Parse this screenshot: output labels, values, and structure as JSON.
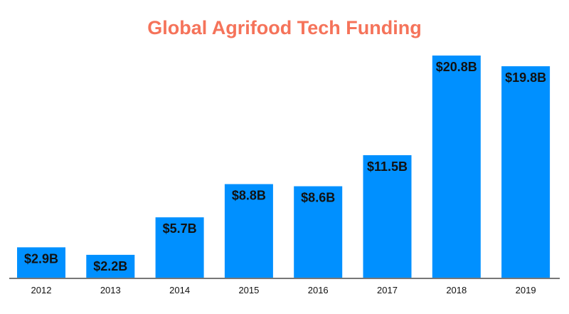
{
  "chart_data": {
    "type": "bar",
    "title": "Global Agrifood Tech Funding",
    "xlabel": "",
    "ylabel": "",
    "categories": [
      "2012",
      "2013",
      "2014",
      "2015",
      "2016",
      "2017",
      "2018",
      "2019"
    ],
    "values": [
      2.9,
      2.2,
      5.7,
      8.8,
      8.6,
      11.5,
      20.8,
      19.8
    ],
    "data_labels": [
      "$2.9B",
      "$2.2B",
      "$5.7B",
      "$8.8B",
      "$8.6B",
      "$11.5B",
      "$20.8B",
      "$19.8B"
    ],
    "unit": "USD billions",
    "ylim": [
      0,
      20.8
    ],
    "grid": false,
    "legend": "none",
    "colors": {
      "bar": "#0090FF",
      "title": "#F5735A",
      "axis": "#777777"
    }
  }
}
